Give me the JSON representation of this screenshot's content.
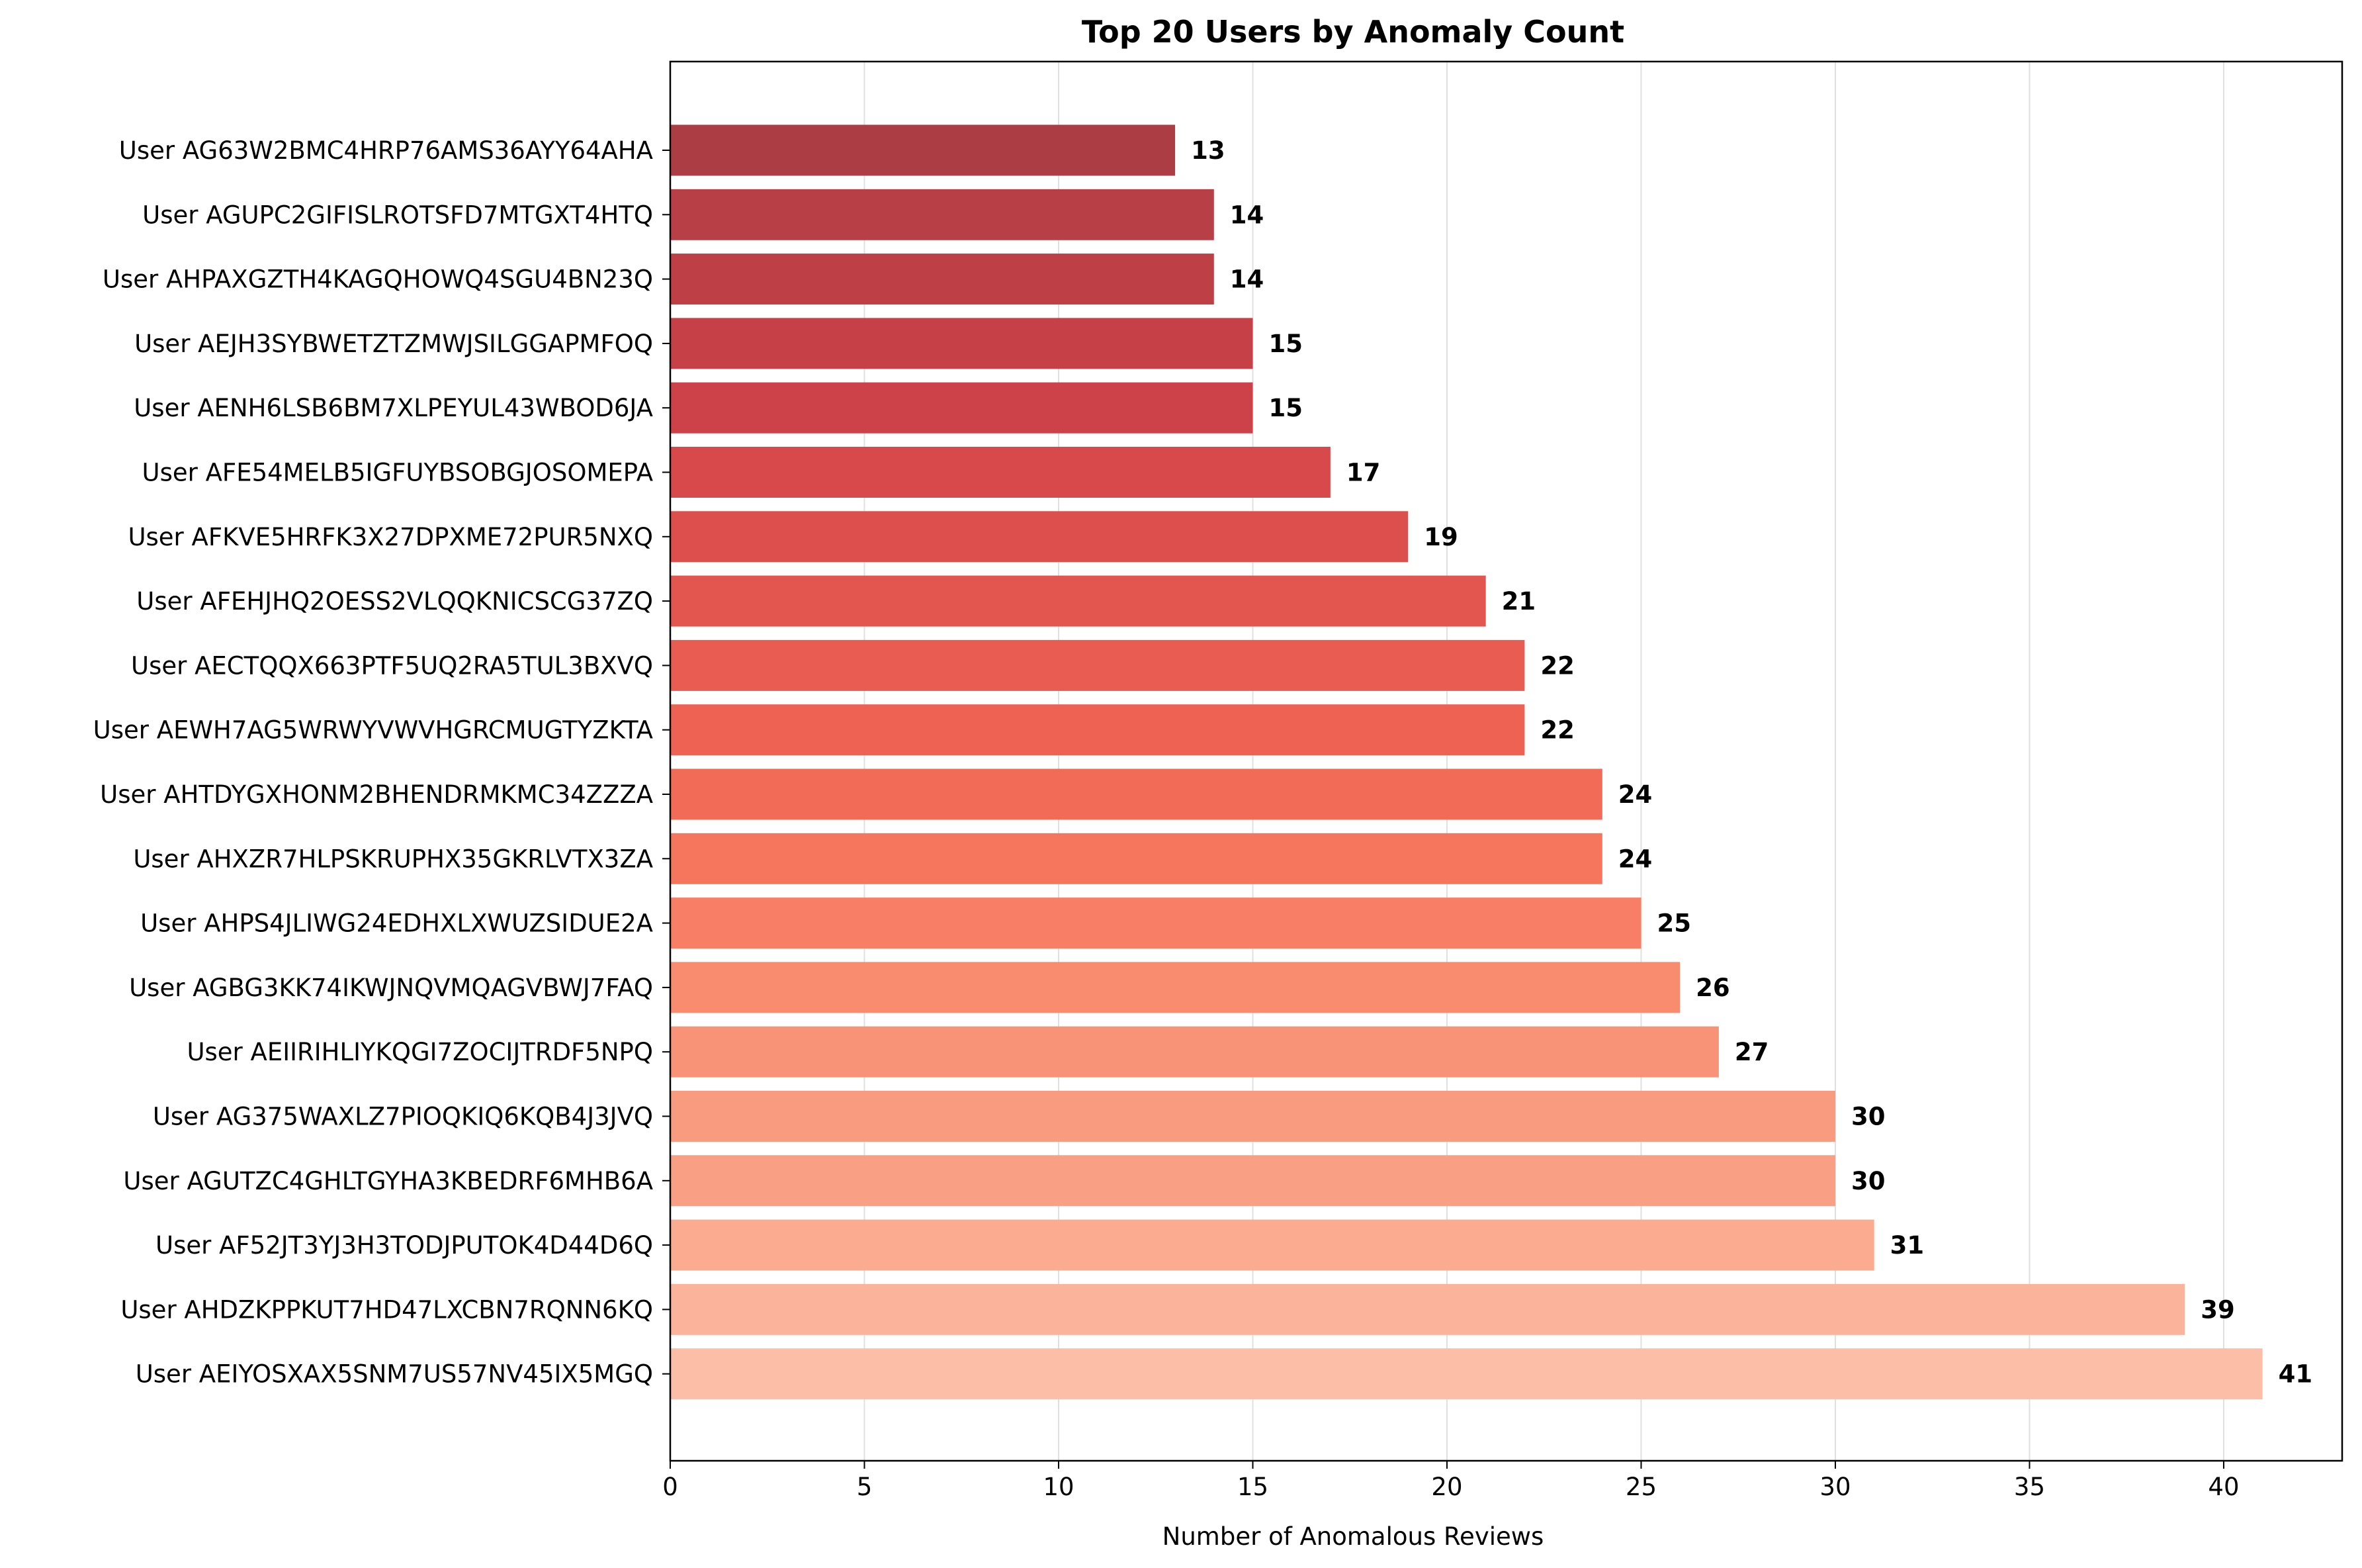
{
  "chart_data": {
    "type": "bar",
    "orientation": "horizontal",
    "title": "Top 20 Users by Anomaly Count",
    "xlabel": "Number of Anomalous Reviews",
    "ylabel": "",
    "xlim": [
      0,
      43.05
    ],
    "xticks": [
      0,
      5,
      10,
      15,
      20,
      25,
      30,
      35,
      40
    ],
    "grid": "x",
    "colors": [
      "#ad3d44",
      "#b83f45",
      "#be3f46",
      "#c64047",
      "#cd4248",
      "#d8494b",
      "#dd4f4d",
      "#e3564f",
      "#e95c52",
      "#ee6253",
      "#f26b57",
      "#f6755d",
      "#f87f66",
      "#f98b6e",
      "#f99377",
      "#f99b7f",
      "#f99f84",
      "#fbab8f",
      "#fbb49b",
      "#fcbea7"
    ],
    "categories": [
      "User AG63W2BMC4HRP76AMS36AYY64AHA",
      "User AGUPC2GIFISLROTSFD7MTGXT4HTQ",
      "User AHPAXGZTH4KAGQHOWQ4SGU4BN23Q",
      "User AEJH3SYBWETZTZMWJSILGGAPMFOQ",
      "User AENH6LSB6BM7XLPEYUL43WBOD6JA",
      "User AFE54MELB5IGFUYBSOBGJOSOMEPA",
      "User AFKVE5HRFK3X27DPXME72PUR5NXQ",
      "User AFEHJHQ2OESS2VLQQKNICSCG37ZQ",
      "User AECTQQX663PTF5UQ2RA5TUL3BXVQ",
      "User AEWH7AG5WRWYVWVHGRCMUGTYZKTA",
      "User AHTDYGXHONM2BHENDRMKMC34ZZZA",
      "User AHXZR7HLPSKRUPHX35GKRLVTX3ZA",
      "User AHPS4JLIWG24EDHXLXWUZSIDUE2A",
      "User AGBG3KK74IKWJNQVMQAGVBWJ7FAQ",
      "User AEIIRIHLIYKQGI7ZOCIJTRDF5NPQ",
      "User AG375WAXLZ7PIOQKIQ6KQB4J3JVQ",
      "User AGUTZC4GHLTGYHA3KBEDRF6MHB6A",
      "User AF52JT3YJ3H3TODJPUTOK4D44D6Q",
      "User AHDZKPPKUT7HD47LXCBN7RQNN6KQ",
      "User AEIYOSXAX5SNM7US57NV45IX5MGQ"
    ],
    "values": [
      13,
      14,
      14,
      15,
      15,
      17,
      19,
      21,
      22,
      22,
      24,
      24,
      25,
      26,
      27,
      30,
      30,
      31,
      39,
      41
    ]
  }
}
